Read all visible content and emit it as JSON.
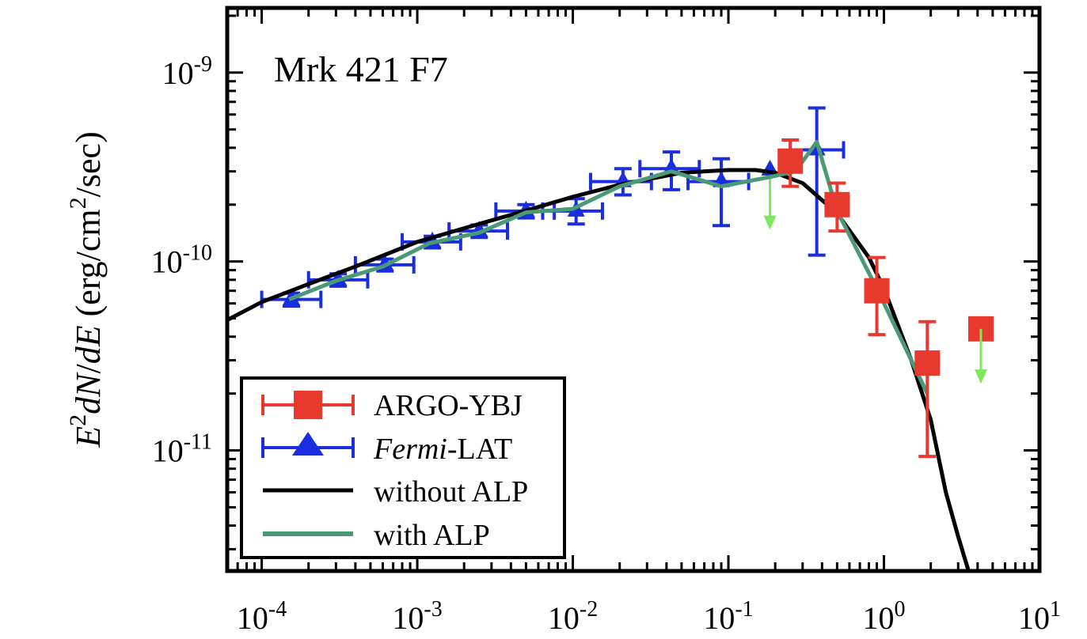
{
  "chart_data": {
    "type": "scatter",
    "annotation": "Mrk 421 F7",
    "xlabel": "",
    "ylabel": {
      "E": "E",
      "sup2": "2",
      "dN": "dN",
      "slash": "/",
      "dE": "dE",
      "open": " (erg/cm",
      "close": "/sec)"
    },
    "x_scale": "log",
    "y_scale": "log",
    "xlim": [
      6e-05,
      10
    ],
    "ylim": [
      2.3e-12,
      2.2e-09
    ],
    "x_tick_labels": [
      {
        "base": "10",
        "exp": "-4"
      },
      {
        "base": "10",
        "exp": "-3"
      },
      {
        "base": "10",
        "exp": "-2"
      },
      {
        "base": "10",
        "exp": "-1"
      },
      {
        "base": "10",
        "exp": "0"
      },
      {
        "base": "10",
        "exp": "1"
      }
    ],
    "y_tick_labels": [
      {
        "base": "10",
        "exp": "-11"
      },
      {
        "base": "10",
        "exp": "-10"
      },
      {
        "base": "10",
        "exp": "-9"
      }
    ],
    "grid": false,
    "legend_position": "bottom-left",
    "legend": [
      {
        "label_plain": "ARGO-YBJ",
        "label_italic": "",
        "label_rest": ""
      },
      {
        "label_plain": "",
        "label_italic": "Fermi",
        "label_rest": "-LAT"
      },
      {
        "label_plain": "without ALP",
        "label_italic": "",
        "label_rest": ""
      },
      {
        "label_plain": "with ALP",
        "label_italic": "",
        "label_rest": ""
      }
    ],
    "colors": {
      "argo": "#e8392e",
      "fermi": "#1a2ee0",
      "without_alp": "#000000",
      "with_alp": "#4a9a78",
      "upper_limit": "#7fe85a"
    },
    "series": [
      {
        "kind": "argo",
        "points": [
          {
            "x": 0.25,
            "y": 3.4e-10,
            "ylo": 2.5e-10,
            "yhi": 4.4e-10
          },
          {
            "x": 0.5,
            "y": 2e-10,
            "ylo": 1.45e-10,
            "yhi": 2.6e-10
          },
          {
            "x": 0.9,
            "y": 7e-11,
            "ylo": 4.1e-11,
            "yhi": 1.05e-10
          },
          {
            "x": 1.9,
            "y": 2.9e-11,
            "ylo": 9.3e-12,
            "yhi": 4.8e-11
          }
        ],
        "upper_limits": [
          {
            "x": 4.2,
            "y": 4.4e-11,
            "to": 2.3e-11
          }
        ]
      },
      {
        "kind": "fermi",
        "points": [
          {
            "x": 0.000155,
            "y": 6.3e-11,
            "xlo": 0.0001,
            "xhi": 0.00024,
            "ylo": 5.8e-11,
            "yhi": 6.8e-11
          },
          {
            "x": 0.00031,
            "y": 8e-11,
            "xlo": 0.0002,
            "xhi": 0.00048,
            "ylo": 7.4e-11,
            "yhi": 8.6e-11
          },
          {
            "x": 0.00062,
            "y": 9.6e-11,
            "xlo": 0.0004,
            "xhi": 0.00095,
            "ylo": 8.9e-11,
            "yhi": 1.03e-10
          },
          {
            "x": 0.00125,
            "y": 1.27e-10,
            "xlo": 0.0008,
            "xhi": 0.0019,
            "ylo": 1.18e-10,
            "yhi": 1.36e-10
          },
          {
            "x": 0.0025,
            "y": 1.45e-10,
            "xlo": 0.0016,
            "xhi": 0.0038,
            "ylo": 1.34e-10,
            "yhi": 1.56e-10
          },
          {
            "x": 0.005,
            "y": 1.85e-10,
            "xlo": 0.0032,
            "xhi": 0.0076,
            "ylo": 1.7e-10,
            "yhi": 2e-10
          },
          {
            "x": 0.0105,
            "y": 1.85e-10,
            "xlo": 0.0064,
            "xhi": 0.0155,
            "ylo": 1.58e-10,
            "yhi": 2.15e-10
          },
          {
            "x": 0.021,
            "y": 2.65e-10,
            "xlo": 0.013,
            "xhi": 0.032,
            "ylo": 2.25e-10,
            "yhi": 3.1e-10
          },
          {
            "x": 0.043,
            "y": 3.1e-10,
            "xlo": 0.027,
            "xhi": 0.065,
            "ylo": 2.4e-10,
            "yhi": 3.8e-10
          },
          {
            "x": 0.09,
            "y": 2.65e-10,
            "xlo": 0.055,
            "xhi": 0.135,
            "ylo": 1.55e-10,
            "yhi": 3.5e-10
          },
          {
            "x": 0.37,
            "y": 3.9e-10,
            "xlo": 0.25,
            "xhi": 0.55,
            "ylo": 1.08e-10,
            "yhi": 6.5e-10
          }
        ],
        "upper_limits": [
          {
            "x": 0.185,
            "y": 3.05e-10,
            "to": 1.5e-10
          }
        ]
      },
      {
        "kind": "without_alp",
        "x": [
          6e-05,
          0.0001,
          0.0002,
          0.0004,
          0.001,
          0.002,
          0.005,
          0.01,
          0.02,
          0.05,
          0.1,
          0.15,
          0.2,
          0.3,
          0.5,
          0.8,
          1.0,
          1.5,
          2.0,
          2.5,
          3.0,
          3.5
        ],
        "y": [
          4.9e-11,
          6.1e-11,
          7.6e-11,
          9.4e-11,
          1.27e-10,
          1.5e-10,
          1.86e-10,
          2.2e-10,
          2.55e-10,
          2.95e-10,
          3.05e-10,
          3.05e-10,
          2.95e-10,
          2.6e-10,
          1.8e-10,
          1.05e-10,
          7.2e-11,
          3e-11,
          1.45e-11,
          6e-12,
          3.5e-12,
          2.3e-12
        ]
      },
      {
        "kind": "with_alp",
        "x": [
          0.00015,
          0.0003,
          0.0006,
          0.0012,
          0.0025,
          0.005,
          0.01,
          0.02,
          0.043,
          0.09,
          0.185,
          0.27,
          0.37,
          0.5,
          0.9,
          1.9
        ],
        "y": [
          6.3e-11,
          7.9e-11,
          9.4e-11,
          1.25e-10,
          1.42e-10,
          1.82e-10,
          1.9e-10,
          2.5e-10,
          3e-10,
          2.5e-10,
          2.8e-10,
          3e-10,
          4.3e-10,
          1.85e-10,
          7.2e-11,
          2e-11
        ]
      }
    ]
  }
}
